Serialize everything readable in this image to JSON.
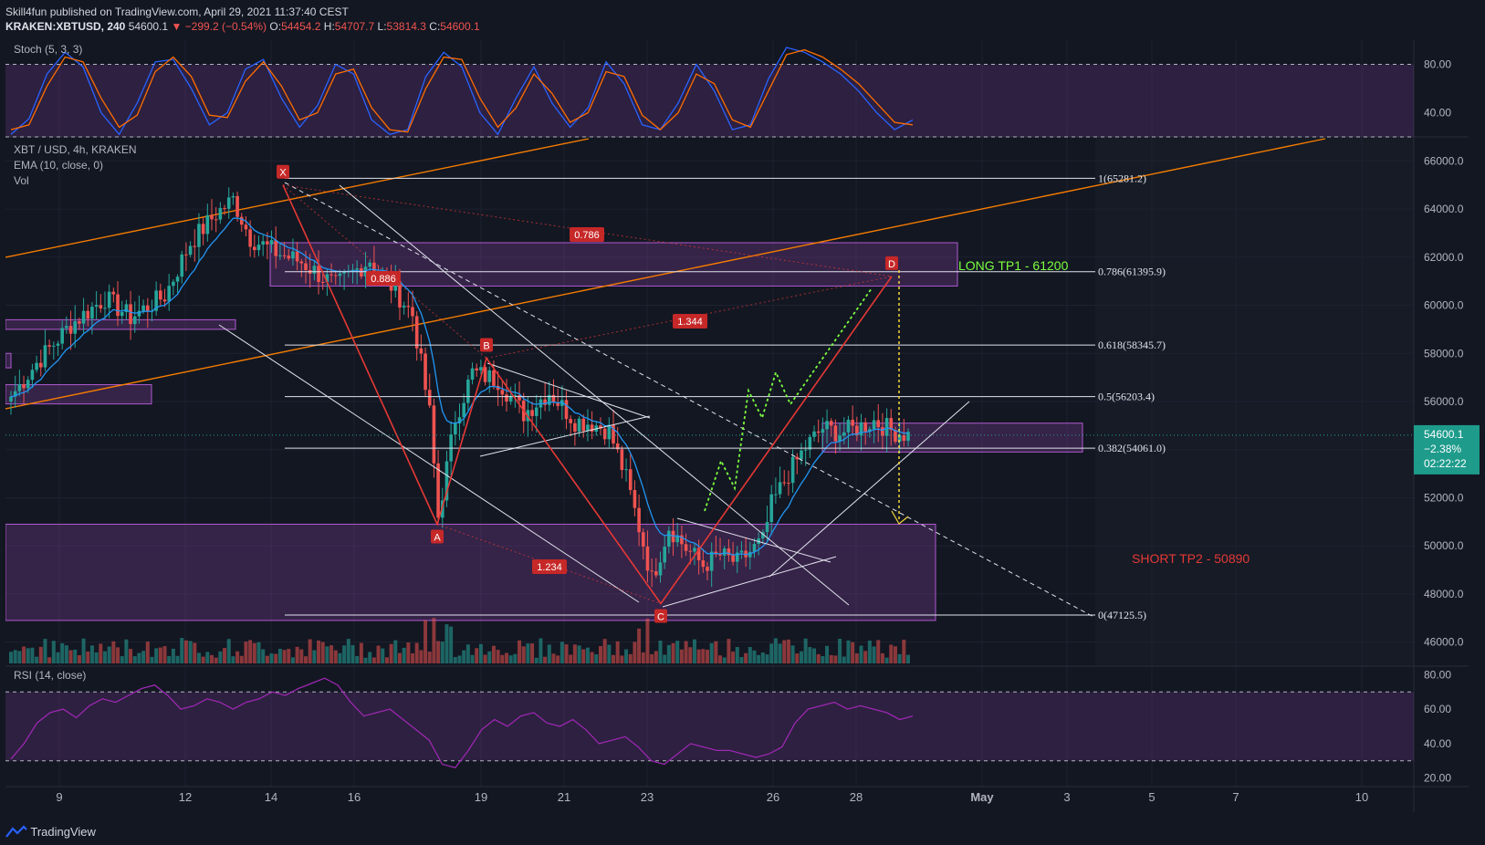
{
  "header": {
    "line1": "Skill4fun published on TradingView.com, April 29, 2021 11:37:40 CEST",
    "symbol": "KRAKEN:XBTUSD, 240",
    "last": "54600.1",
    "change": "▼ −299.2 (−0.54%)",
    "o_label": "O:",
    "o_val": "54454.2",
    "h_label": "H:",
    "h_val": "54707.7",
    "l_label": "L:",
    "l_val": "53814.3",
    "c_label": "C:",
    "c_val": "54600.1"
  },
  "footer": {
    "brand": "TradingView"
  },
  "colors": {
    "bg": "#131722",
    "up": "#26a69a",
    "down": "#ef5350",
    "box": "#8e44ad",
    "fib": "#e0e3eb",
    "channel": "#f57c00",
    "harmonic": "#e53935",
    "green_path": "#7cff3f",
    "yellow": "#f5d63b",
    "stoch_k": "#2962ff",
    "stoch_d": "#ff6d00",
    "rsi": "#9c27b0",
    "ema": "#2196f3"
  },
  "chart_data": [
    {
      "type": "line",
      "title": "Stoch (5, 3, 3)",
      "ylim": [
        20,
        100
      ],
      "y_ticks": [
        "80.00",
        "40.00"
      ],
      "bands": [
        20,
        80
      ],
      "series": [
        {
          "color": "#2962ff",
          "values": [
            22,
            35,
            72,
            90,
            78,
            40,
            22,
            48,
            82,
            84,
            60,
            30,
            40,
            76,
            84,
            52,
            28,
            46,
            80,
            72,
            34,
            22,
            26,
            70,
            90,
            78,
            40,
            22,
            52,
            78,
            48,
            28,
            44,
            82,
            64,
            30,
            26,
            48,
            80,
            58,
            26,
            30,
            68,
            94,
            90,
            82,
            72,
            58,
            40,
            26,
            34
          ]
        },
        {
          "color": "#ff6d00",
          "values": [
            26,
            30,
            62,
            86,
            82,
            52,
            28,
            38,
            74,
            86,
            70,
            38,
            36,
            66,
            82,
            62,
            34,
            40,
            72,
            76,
            44,
            26,
            24,
            60,
            86,
            84,
            52,
            28,
            44,
            72,
            56,
            32,
            40,
            74,
            70,
            38,
            26,
            40,
            72,
            64,
            34,
            28,
            58,
            88,
            92,
            86,
            76,
            64,
            48,
            32,
            30
          ]
        }
      ]
    },
    {
      "type": "candlestick",
      "title": "XBT / USD, 4h, KRAKEN",
      "indicators": [
        "EMA (10, close, 0)",
        "Vol"
      ],
      "ylim": [
        45000,
        67000
      ],
      "y_ticks": [
        "66000.0",
        "64000.0",
        "62000.0",
        "60000.0",
        "58000.0",
        "56000.0",
        "54000.0",
        "52000.0",
        "50000.0",
        "48000.0",
        "46000.0"
      ],
      "x_ticks": [
        "9",
        "12",
        "14",
        "16",
        "19",
        "21",
        "23",
        "26",
        "28",
        "May",
        "3",
        "5",
        "7",
        "10"
      ],
      "last_price": "54600.1",
      "last_change": "−2.38%",
      "countdown": "02:22:22",
      "anchors_close": [
        [
          0,
          56200
        ],
        [
          6,
          57600
        ],
        [
          14,
          59200
        ],
        [
          22,
          60300
        ],
        [
          28,
          59500
        ],
        [
          36,
          60400
        ],
        [
          42,
          62600
        ],
        [
          48,
          63800
        ],
        [
          52,
          64400
        ],
        [
          56,
          62800
        ],
        [
          62,
          62200
        ],
        [
          68,
          61800
        ],
        [
          76,
          60800
        ],
        [
          84,
          61900
        ],
        [
          90,
          60600
        ],
        [
          94,
          59600
        ],
        [
          98,
          55500
        ],
        [
          100,
          51200
        ],
        [
          104,
          55300
        ],
        [
          108,
          57200
        ],
        [
          114,
          56900
        ],
        [
          120,
          55500
        ],
        [
          126,
          56400
        ],
        [
          132,
          55200
        ],
        [
          136,
          55100
        ],
        [
          140,
          54800
        ],
        [
          144,
          52800
        ],
        [
          148,
          50100
        ],
        [
          150,
          48600
        ],
        [
          154,
          50800
        ],
        [
          158,
          49900
        ],
        [
          162,
          49200
        ],
        [
          166,
          49600
        ],
        [
          170,
          49300
        ],
        [
          176,
          50200
        ],
        [
          178,
          51700
        ],
        [
          182,
          53000
        ],
        [
          186,
          54100
        ],
        [
          190,
          54900
        ],
        [
          194,
          54700
        ],
        [
          198,
          54900
        ],
        [
          202,
          55200
        ],
        [
          206,
          54800
        ],
        [
          210,
          54600
        ]
      ],
      "fib_levels": [
        {
          "label": "1(65281.2)",
          "value": 65281.2
        },
        {
          "label": "0.786(61395.9)",
          "value": 61395.9
        },
        {
          "label": "0.618(58345.7)",
          "value": 58345.7
        },
        {
          "label": "0.5(56203.4)",
          "value": 56203.4
        },
        {
          "label": "0.382(54061.0)",
          "value": 54061.0
        },
        {
          "label": "0(47125.5)",
          "value": 47125.5
        }
      ],
      "harmonic_points": [
        {
          "label": "X",
          "value": 65000
        },
        {
          "label": "A",
          "value": 50900
        },
        {
          "label": "B",
          "value": 57800
        },
        {
          "label": "C",
          "value": 47600
        },
        {
          "label": "D",
          "value": 61200
        }
      ],
      "ratios": [
        "0.786",
        "1.344",
        "1.234",
        "0.886"
      ],
      "annotations": [
        {
          "text": "LONG TP1 - 61200",
          "color": "#7cff3f"
        },
        {
          "text": "SHORT TP2 - 50890",
          "color": "#e53935"
        }
      ],
      "zones": [
        {
          "from": 60800,
          "to": 62600
        },
        {
          "from": 46900,
          "to": 50900
        },
        {
          "from": 53900,
          "to": 55100
        },
        {
          "from": 59000,
          "to": 59400
        },
        {
          "from": 55900,
          "to": 56700
        },
        {
          "from": 57400,
          "to": 58000
        }
      ]
    },
    {
      "type": "line",
      "title": "RSI (14, close)",
      "ylim": [
        15,
        85
      ],
      "y_ticks": [
        "80.00",
        "60.00",
        "40.00",
        "20.00"
      ],
      "bands": [
        30,
        70
      ],
      "series": [
        {
          "color": "#9c27b0",
          "values": [
            31,
            40,
            52,
            58,
            60,
            55,
            62,
            66,
            64,
            68,
            72,
            74,
            68,
            60,
            62,
            66,
            64,
            60,
            64,
            66,
            70,
            68,
            72,
            75,
            78,
            74,
            64,
            56,
            58,
            60,
            54,
            48,
            42,
            28,
            26,
            36,
            48,
            54,
            50,
            56,
            58,
            52,
            50,
            54,
            48,
            40,
            42,
            44,
            38,
            30,
            28,
            34,
            40,
            38,
            36,
            36,
            34,
            32,
            34,
            38,
            52,
            60,
            62,
            64,
            60,
            62,
            60,
            58,
            54,
            56
          ]
        }
      ]
    }
  ]
}
